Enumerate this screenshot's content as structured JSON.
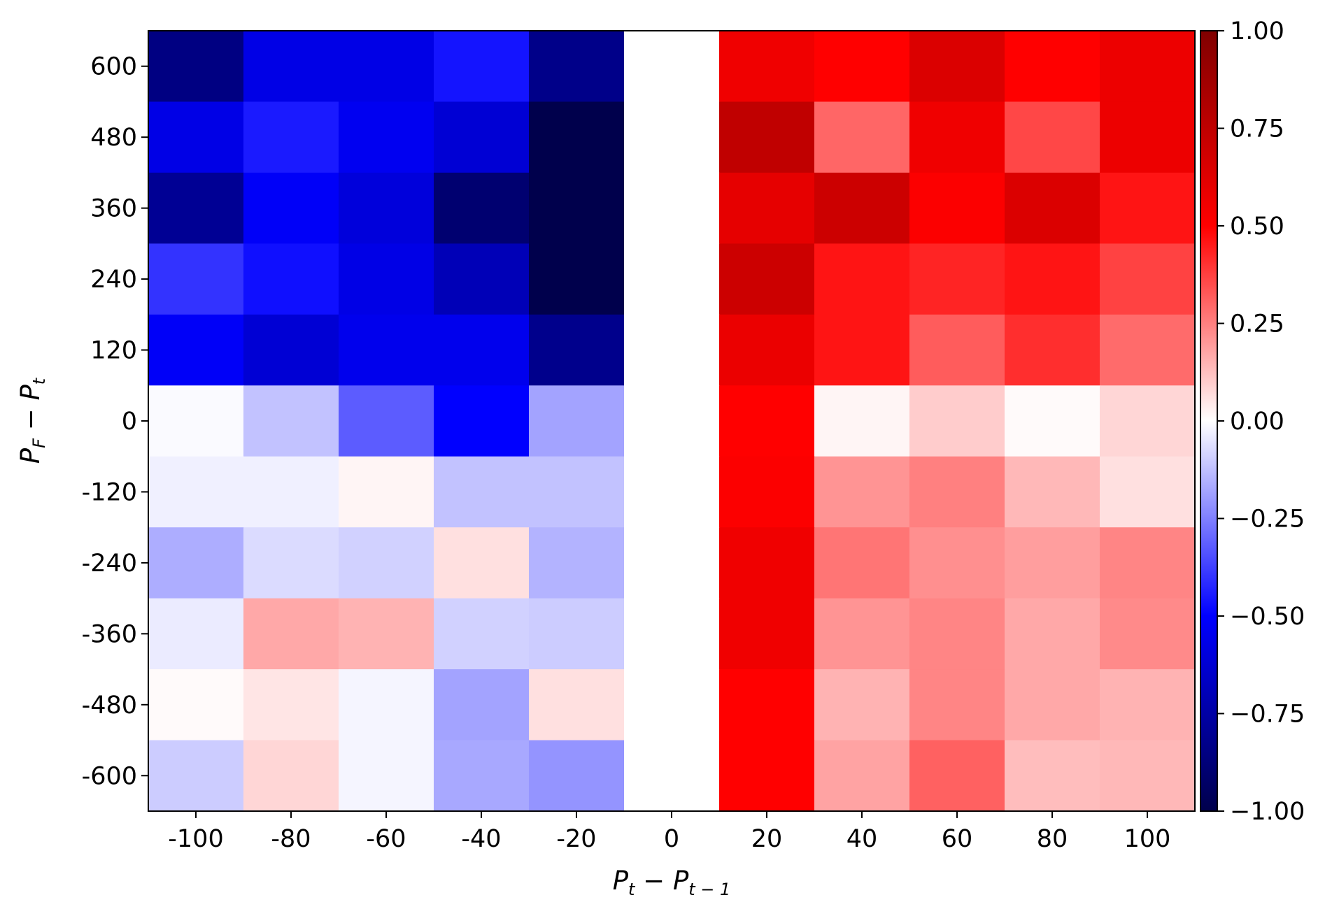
{
  "chart_data": {
    "type": "heatmap",
    "xlabel": {
      "main": "P",
      "sub": "t",
      "minus": " − P",
      "sub2": "t − 1"
    },
    "ylabel": {
      "main": "P",
      "sub": "F",
      "minus": " − P",
      "sub2": "t"
    },
    "x_tick_labels": [
      "-100",
      "-80",
      "-60",
      "-40",
      "-20",
      "0",
      "20",
      "40",
      "60",
      "80",
      "100"
    ],
    "y_tick_labels": [
      "600",
      "480",
      "360",
      "240",
      "120",
      "0",
      "-120",
      "-240",
      "-360",
      "-480",
      "-600"
    ],
    "x_values": [
      -100,
      -80,
      -60,
      -40,
      -20,
      0,
      20,
      40,
      60,
      80,
      100
    ],
    "y_values": [
      600,
      480,
      360,
      240,
      120,
      0,
      -120,
      -240,
      -360,
      -480,
      -600
    ],
    "colorbar": {
      "range": [
        -1.0,
        1.0
      ],
      "tick_labels": [
        "1.00",
        "0.75",
        "0.50",
        "0.25",
        "0.00",
        "−0.25",
        "−0.50",
        "−0.75",
        "−1.00"
      ],
      "tick_values": [
        1.0,
        0.75,
        0.5,
        0.25,
        0.0,
        -0.25,
        -0.5,
        -0.75,
        -1.0
      ],
      "colormap": "seismic"
    },
    "values": [
      [
        -0.85,
        -0.57,
        -0.57,
        -0.46,
        -0.83,
        0.0,
        0.56,
        0.5,
        0.64,
        0.5,
        0.57
      ],
      [
        -0.57,
        -0.45,
        -0.54,
        -0.62,
        -1.0,
        0.0,
        0.75,
        0.3,
        0.56,
        0.36,
        0.57
      ],
      [
        -0.8,
        -0.52,
        -0.6,
        -0.9,
        -1.0,
        0.0,
        0.6,
        0.7,
        0.51,
        0.64,
        0.46
      ],
      [
        -0.4,
        -0.47,
        -0.57,
        -0.7,
        -1.0,
        0.0,
        0.7,
        0.46,
        0.43,
        0.46,
        0.37
      ],
      [
        -0.52,
        -0.62,
        -0.55,
        -0.55,
        -0.82,
        0.0,
        0.58,
        0.46,
        0.32,
        0.41,
        0.29
      ],
      [
        -0.01,
        -0.12,
        -0.32,
        -0.5,
        -0.18,
        0.0,
        0.5,
        0.02,
        0.1,
        0.01,
        0.08
      ],
      [
        -0.03,
        -0.03,
        0.02,
        -0.12,
        -0.12,
        0.0,
        0.51,
        0.21,
        0.25,
        0.14,
        0.06
      ],
      [
        -0.16,
        -0.07,
        -0.09,
        0.06,
        -0.15,
        0.0,
        0.56,
        0.27,
        0.22,
        0.19,
        0.24
      ],
      [
        -0.04,
        0.17,
        0.15,
        -0.09,
        -0.1,
        0.0,
        0.56,
        0.21,
        0.24,
        0.17,
        0.23
      ],
      [
        0.01,
        0.05,
        -0.02,
        -0.18,
        0.06,
        0.0,
        0.5,
        0.15,
        0.24,
        0.17,
        0.15
      ],
      [
        -0.1,
        0.08,
        -0.02,
        -0.17,
        -0.21,
        0.0,
        0.5,
        0.18,
        0.31,
        0.13,
        0.14
      ]
    ]
  }
}
